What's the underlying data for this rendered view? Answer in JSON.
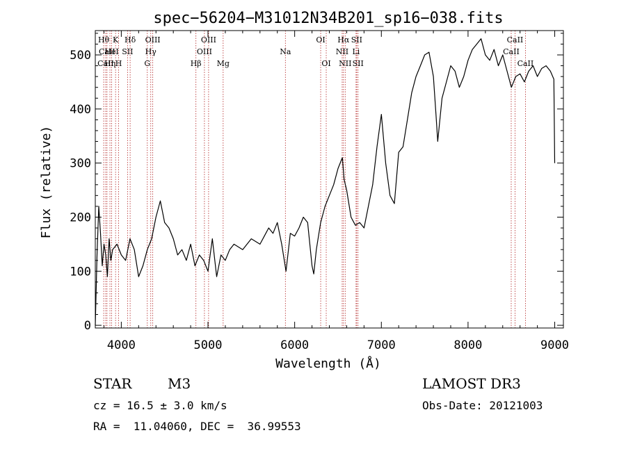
{
  "chart_data": {
    "type": "line",
    "title": "spec−56204−M31012N34B201_sp16−038.fits",
    "xlabel": "Wavelength (Å)",
    "ylabel": "Flux (relative)",
    "xlim": [
      3700,
      9100
    ],
    "ylim": [
      -5,
      545
    ],
    "xticks": [
      4000,
      5000,
      6000,
      7000,
      8000,
      9000
    ],
    "yticks": [
      0,
      100,
      200,
      300,
      400,
      500
    ],
    "line_color": "#000000",
    "marker_color": "#b22222",
    "series": [
      {
        "x": [
          3700,
          3720,
          3740,
          3760,
          3780,
          3800,
          3820,
          3840,
          3860,
          3880,
          3900,
          3950,
          4000,
          4050,
          4100,
          4150,
          4200,
          4250,
          4300,
          4350,
          4400,
          4450,
          4500,
          4550,
          4600,
          4650,
          4700,
          4750,
          4800,
          4850,
          4900,
          4950,
          5000,
          5050,
          5100,
          5150,
          5200,
          5250,
          5300,
          5400,
          5500,
          5600,
          5700,
          5750,
          5800,
          5850,
          5900,
          5950,
          6000,
          6050,
          6100,
          6150,
          6200,
          6220,
          6250,
          6280,
          6300,
          6350,
          6400,
          6450,
          6500,
          6550,
          6570,
          6600,
          6650,
          6700,
          6750,
          6800,
          6850,
          6900,
          6950,
          7000,
          7050,
          7100,
          7150,
          7200,
          7250,
          7300,
          7350,
          7400,
          7450,
          7500,
          7550,
          7600,
          7630,
          7650,
          7700,
          7750,
          7800,
          7850,
          7900,
          7950,
          8000,
          8050,
          8100,
          8150,
          8200,
          8250,
          8300,
          8350,
          8400,
          8450,
          8500,
          8550,
          8600,
          8650,
          8700,
          8750,
          8800,
          8850,
          8900,
          8950,
          8990,
          9000
        ],
        "y": [
          0,
          130,
          220,
          170,
          110,
          150,
          130,
          90,
          160,
          120,
          140,
          150,
          130,
          120,
          160,
          140,
          90,
          110,
          140,
          160,
          200,
          230,
          190,
          180,
          160,
          130,
          140,
          120,
          150,
          110,
          130,
          120,
          100,
          160,
          90,
          130,
          120,
          140,
          150,
          140,
          160,
          150,
          180,
          170,
          190,
          150,
          100,
          170,
          165,
          180,
          200,
          190,
          110,
          95,
          140,
          170,
          190,
          220,
          240,
          260,
          290,
          310,
          270,
          250,
          200,
          185,
          190,
          180,
          220,
          260,
          330,
          390,
          300,
          240,
          225,
          320,
          330,
          380,
          430,
          460,
          480,
          500,
          505,
          460,
          390,
          340,
          420,
          450,
          480,
          470,
          440,
          460,
          490,
          510,
          520,
          530,
          500,
          490,
          510,
          480,
          500,
          470,
          440,
          460,
          465,
          450,
          470,
          480,
          460,
          475,
          480,
          470,
          455,
          300
        ]
      }
    ],
    "lines": [
      {
        "wl": 3797,
        "label": "Hθ",
        "row": 0
      },
      {
        "wl": 3835,
        "label": "CaII",
        "row": 1
      },
      {
        "wl": 3820,
        "label": "CaII",
        "row": 2
      },
      {
        "wl": 3869,
        "label": "Hη",
        "row": 2
      },
      {
        "wl": 3889,
        "label": "HeI",
        "row": 1
      },
      {
        "wl": 3934,
        "label": "K",
        "row": 0
      },
      {
        "wl": 3969,
        "label": "H",
        "row": 2
      },
      {
        "wl": 4072,
        "label": "SII",
        "row": 1
      },
      {
        "wl": 4102,
        "label": "Hδ",
        "row": 0
      },
      {
        "wl": 4300,
        "label": "G",
        "row": 2
      },
      {
        "wl": 4340,
        "label": "Hγ",
        "row": 1
      },
      {
        "wl": 4363,
        "label": "OIII",
        "row": 0
      },
      {
        "wl": 4861,
        "label": "Hβ",
        "row": 2
      },
      {
        "wl": 4959,
        "label": "OIII",
        "row": 1
      },
      {
        "wl": 5007,
        "label": "OIII",
        "row": 0
      },
      {
        "wl": 5175,
        "label": "Mg",
        "row": 2
      },
      {
        "wl": 5893,
        "label": "Na",
        "row": 1
      },
      {
        "wl": 6300,
        "label": "OI",
        "row": 0
      },
      {
        "wl": 6364,
        "label": "OI",
        "row": 2
      },
      {
        "wl": 6548,
        "label": "NII",
        "row": 1
      },
      {
        "wl": 6563,
        "label": "Hα",
        "row": 0
      },
      {
        "wl": 6583,
        "label": "NII",
        "row": 2
      },
      {
        "wl": 6708,
        "label": "Li",
        "row": 1
      },
      {
        "wl": 6716,
        "label": "SII",
        "row": 0
      },
      {
        "wl": 6731,
        "label": "SII",
        "row": 2
      },
      {
        "wl": 8498,
        "label": "CaII",
        "row": 1
      },
      {
        "wl": 8542,
        "label": "CaII",
        "row": 0
      },
      {
        "wl": 8662,
        "label": "CaII",
        "row": 2
      }
    ]
  },
  "info": {
    "object_type": "STAR",
    "subclass": "M3",
    "survey": "LAMOST DR3",
    "cz": "cz = 16.5 ± 3.0 km/s",
    "obs_date": "Obs-Date: 20121003",
    "radec": "RA =  11.04060, DEC =  36.99553"
  }
}
